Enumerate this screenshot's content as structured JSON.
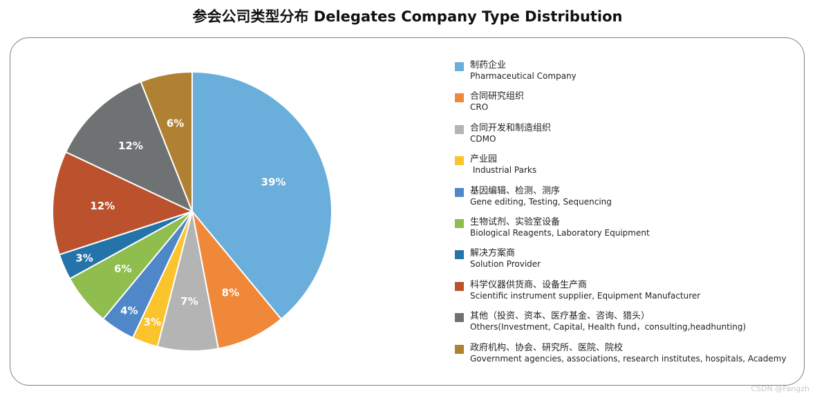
{
  "title": "参会公司类型分布 Delegates Company Type Distribution",
  "watermark": "CSDN @Fangzh",
  "chart_data": {
    "type": "pie",
    "title": "参会公司类型分布 Delegates Company Type Distribution",
    "legend_position": "right",
    "unit": "%",
    "slices": [
      {
        "label_cn": "制药企业",
        "label_en": "Pharmaceutical Company",
        "value": 39,
        "display": "39%",
        "color": "#6aaedb"
      },
      {
        "label_cn": "合同研究组织",
        "label_en": "CRO",
        "value": 8,
        "display": "8%",
        "color": "#f0883a"
      },
      {
        "label_cn": "合同开发和制造组织",
        "label_en": "CDMO",
        "value": 7,
        "display": "7%",
        "color": "#b4b4b4"
      },
      {
        "label_cn": "产业园",
        "label_en": " Industrial Parks",
        "value": 3,
        "display": "3%",
        "color": "#fbc32c"
      },
      {
        "label_cn": "基因编辑、检测、测序",
        "label_en": "Gene editing, Testing, Sequencing",
        "value": 4,
        "display": "4%",
        "color": "#4f87c9"
      },
      {
        "label_cn": "生物试剂、实验室设备",
        "label_en": "Biological Reagents, Laboratory Equipment",
        "value": 6,
        "display": "6%",
        "color": "#8fbd4e"
      },
      {
        "label_cn": "解决方案商",
        "label_en": "Solution Provider",
        "value": 3,
        "display": "3%",
        "color": "#2474aa"
      },
      {
        "label_cn": "科学仪器供货商、设备生产商",
        "label_en": "Scientific instrument supplier, Equipment Manufacturer",
        "value": 12,
        "display": "12%",
        "color": "#bb522d"
      },
      {
        "label_cn": "其他（投资、资本、医疗基金、咨询、猎头）",
        "label_en": "Others(Investment, Capital, Health fund，consulting,headhunting)",
        "value": 12,
        "display": "12%",
        "color": "#6f7273"
      },
      {
        "label_cn": "政府机构、协会、研究所、医院、院校",
        "label_en": "Government agencies, associations, research institutes, hospitals, Academy",
        "value": 6,
        "display": "6%",
        "color": "#b18133"
      }
    ]
  }
}
